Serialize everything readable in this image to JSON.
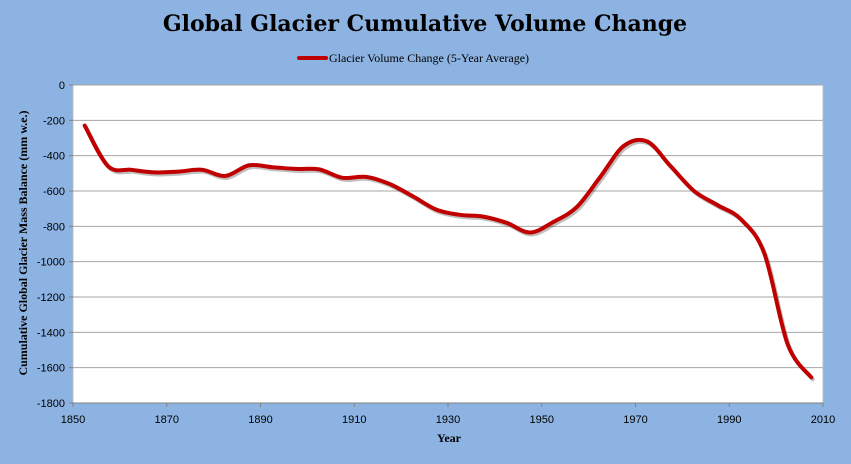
{
  "chart_data": {
    "type": "line",
    "title": "Global Glacier Cumulative Volume Change",
    "xlabel": "Year",
    "ylabel": "Cumulative  Global  Glacier Mass  Balance  (mm w.e.)",
    "xlim": [
      1850,
      2010
    ],
    "ylim": [
      -1800,
      0
    ],
    "xticks": [
      1850,
      1870,
      1890,
      1910,
      1930,
      1950,
      1970,
      1990,
      2010
    ],
    "yticks": [
      0,
      -200,
      -400,
      -600,
      -800,
      -1000,
      -1200,
      -1400,
      -1600,
      -1800
    ],
    "grid": true,
    "legend_position": "top",
    "series": [
      {
        "name": "Glacier Volume Change (5-Year Average)",
        "color": "#C00000",
        "x": [
          1852.5,
          1857.5,
          1862.5,
          1867.5,
          1872.5,
          1877.5,
          1882.5,
          1887.5,
          1892.5,
          1897.5,
          1902.5,
          1907.5,
          1912.5,
          1917.5,
          1922.5,
          1927.5,
          1932.5,
          1937.5,
          1942.5,
          1947.5,
          1952.5,
          1957.5,
          1962.5,
          1967.5,
          1972.5,
          1977.5,
          1982.5,
          1987.5,
          1992.5,
          1997.5,
          2002.5,
          2007.5
        ],
        "y": [
          -230,
          -460,
          -480,
          -495,
          -490,
          -480,
          -515,
          -455,
          -465,
          -475,
          -478,
          -525,
          -520,
          -560,
          -630,
          -705,
          -735,
          -745,
          -780,
          -835,
          -775,
          -690,
          -520,
          -345,
          -320,
          -460,
          -600,
          -680,
          -760,
          -955,
          -1470,
          -1655
        ]
      }
    ]
  }
}
